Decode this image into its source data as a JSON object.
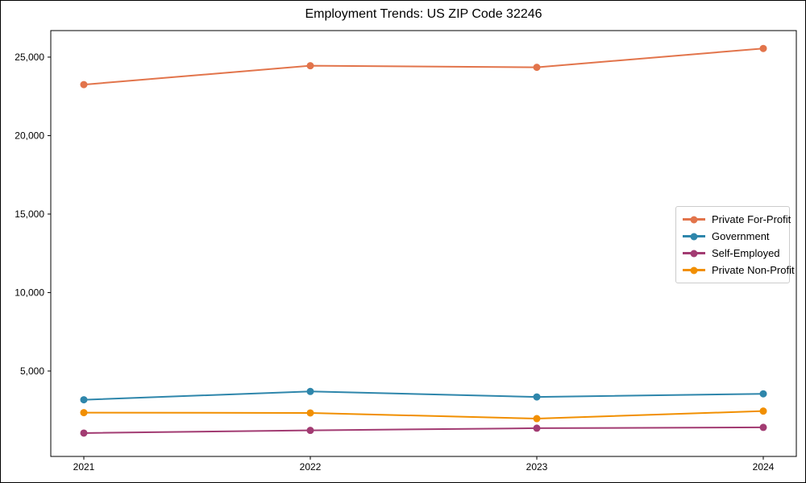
{
  "figure": {
    "title": "Employment Trends: US ZIP Code 32246"
  },
  "chart_data": {
    "type": "line",
    "title": "Employment Trends: US ZIP Code 32246",
    "categories": [
      "2021",
      "2022",
      "2023",
      "2024"
    ],
    "series": [
      {
        "name": "Private For-Profit",
        "color": "#E2744B",
        "values": [
          23250,
          24450,
          24350,
          25550
        ]
      },
      {
        "name": "Government",
        "color": "#2E86AB",
        "values": [
          3170,
          3700,
          3350,
          3550
        ]
      },
      {
        "name": "Self-Employed",
        "color": "#A23B72",
        "values": [
          1050,
          1220,
          1360,
          1410
        ]
      },
      {
        "name": "Private Non-Profit",
        "color": "#F18F01",
        "values": [
          2350,
          2330,
          1970,
          2450
        ]
      }
    ],
    "xlabel": "",
    "ylabel": "",
    "yticks": [
      5000,
      10000,
      15000,
      20000,
      25000
    ],
    "ytick_labels": [
      "5,000",
      "10,000",
      "15,000",
      "20,000",
      "25,000"
    ],
    "ylim": [
      -440,
      26690
    ],
    "grid": false,
    "legend_position": "center-right",
    "marker": "circle",
    "axis_color": "#000000",
    "legend_border_color": "#cccccc"
  }
}
